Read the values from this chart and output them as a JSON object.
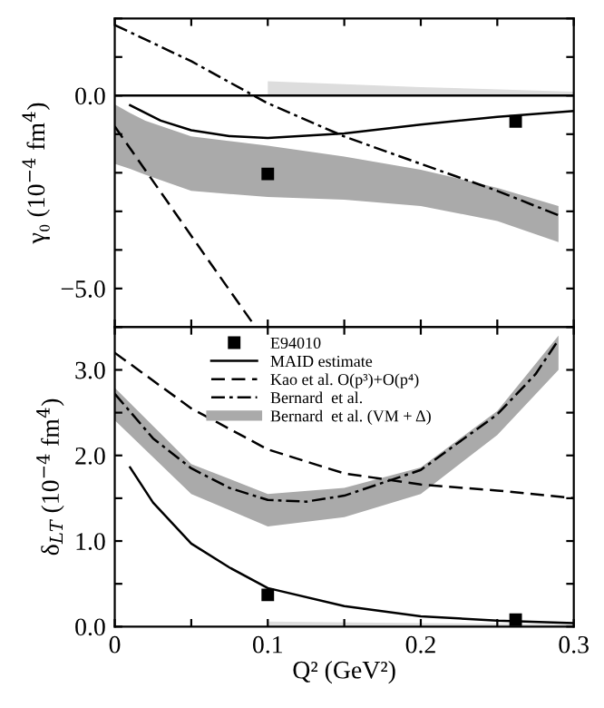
{
  "chart_data": [
    {
      "type": "line",
      "ylabel": "γ₀ (10$^{−4}$ fm$^{4}$)",
      "xlim": [
        0,
        0.3
      ],
      "ylim": [
        -6.0,
        2.0
      ],
      "xticks": [
        {
          "value": 0,
          "label": null
        },
        {
          "value": 0.05,
          "label": null
        },
        {
          "value": 0.1,
          "label": null
        },
        {
          "value": 0.15,
          "label": null
        },
        {
          "value": 0.2,
          "label": null
        },
        {
          "value": 0.25,
          "label": null
        },
        {
          "value": 0.3,
          "label": null
        }
      ],
      "yticks": [
        {
          "value": -6,
          "label": null
        },
        {
          "value": -5,
          "label": "−5.0"
        },
        {
          "value": -4,
          "label": null
        },
        {
          "value": -3,
          "label": null
        },
        {
          "value": -2,
          "label": null
        },
        {
          "value": -1,
          "label": null
        },
        {
          "value": 0,
          "label": "0.0"
        },
        {
          "value": 1,
          "label": null
        },
        {
          "value": 2,
          "label": null
        }
      ],
      "tick_labels": "y",
      "grid": false,
      "legend": false,
      "ref_lines": [
        {
          "axis": "y",
          "value": 0,
          "color": "#000000",
          "line_style": "solid"
        }
      ],
      "series": [
        {
          "color": "#aaaaaa",
          "x": [
            0,
            0.01,
            0.02,
            0.05,
            0.1,
            0.15,
            0.2,
            0.25,
            0.29
          ],
          "values": [
            null,
            null,
            null,
            null,
            null,
            null,
            null,
            null,
            null
          ],
          "lower": [
            -1.77,
            -1.9,
            -2.05,
            -2.47,
            -2.63,
            -2.7,
            -2.86,
            -3.25,
            -3.8
          ],
          "upper": [
            -0.23,
            -0.45,
            -0.65,
            -1.06,
            -1.3,
            -1.58,
            -1.92,
            -2.39,
            -2.86
          ]
        },
        {
          "type": "area",
          "color": "#dddddd",
          "x": [
            0.1,
            0.2,
            0.3
          ],
          "values": [
            0.37,
            0.22,
            0.1
          ]
        },
        {
          "color": "#000000",
          "line_style": "solid",
          "x": [
            0.01,
            0.03,
            0.05,
            0.075,
            0.1,
            0.15,
            0.2,
            0.25,
            0.3
          ],
          "values": [
            -0.25,
            -0.65,
            -0.9,
            -1.05,
            -1.1,
            -0.98,
            -0.75,
            -0.55,
            -0.4
          ]
        },
        {
          "color": "#000000",
          "line_style": "dashed",
          "x": [
            0,
            0.03,
            0.06,
            0.092
          ],
          "values": [
            -0.8,
            -2.5,
            -4.2,
            -6.0
          ]
        },
        {
          "color": "#000000",
          "line_style": "dashdot",
          "x": [
            0,
            0.05,
            0.1,
            0.15,
            0.2,
            0.25,
            0.29
          ],
          "values": [
            1.83,
            0.89,
            -0.2,
            -1.06,
            -1.77,
            -2.47,
            -3.1
          ]
        },
        {
          "type": "scatter",
          "color": "#000000",
          "marker": "square",
          "x": [
            0.1,
            0.262
          ],
          "values": [
            -2.03,
            -0.67
          ]
        }
      ]
    },
    {
      "type": "line",
      "xlabel": "Q² (GeV²)",
      "ylabel": "δ$_{LT}$ (10$^{−4}$ fm$^{4}$)",
      "xlim": [
        0,
        0.3
      ],
      "ylim": [
        0,
        3.5
      ],
      "xticks": [
        {
          "value": 0,
          "label": "0"
        },
        {
          "value": 0.05,
          "label": null
        },
        {
          "value": 0.1,
          "label": "0.1"
        },
        {
          "value": 0.15,
          "label": null
        },
        {
          "value": 0.2,
          "label": "0.2"
        },
        {
          "value": 0.25,
          "label": null
        },
        {
          "value": 0.3,
          "label": "0.3"
        }
      ],
      "yticks": [
        {
          "value": 0,
          "label": "0.0"
        },
        {
          "value": 0.5,
          "label": null
        },
        {
          "value": 1,
          "label": "1.0"
        },
        {
          "value": 1.5,
          "label": null
        },
        {
          "value": 2,
          "label": "2.0"
        },
        {
          "value": 2.5,
          "label": null
        },
        {
          "value": 3,
          "label": "3.0"
        },
        {
          "value": 3.5,
          "label": null
        }
      ],
      "grid": false,
      "legend": "top",
      "series": [
        {
          "type": "scatter",
          "name": "E94010",
          "color": "#000000",
          "marker": "square",
          "x": [
            0.1,
            0.262
          ],
          "values": [
            0.37,
            0.08
          ],
          "errors": [
            0.07,
            null
          ]
        },
        {
          "name": "MAID estimate",
          "color": "#000000",
          "line_style": "solid",
          "x": [
            0.01,
            0.025,
            0.05,
            0.075,
            0.1,
            0.15,
            0.2,
            0.25,
            0.3
          ],
          "values": [
            1.86,
            1.45,
            0.97,
            0.69,
            0.45,
            0.24,
            0.12,
            0.07,
            0.04
          ]
        },
        {
          "name": "Kao et al. O(p³)+O(p⁴)",
          "color": "#000000",
          "line_style": "dashed",
          "x": [
            0,
            0.05,
            0.1,
            0.15,
            0.2,
            0.25,
            0.3
          ],
          "values": [
            3.2,
            2.55,
            2.07,
            1.79,
            1.66,
            1.59,
            1.5
          ]
        },
        {
          "name": "Bernard  et al.",
          "color": "#000000",
          "line_style": "dashdot",
          "x": [
            0,
            0.025,
            0.05,
            0.075,
            0.1,
            0.125,
            0.15,
            0.2,
            0.25,
            0.275,
            0.29
          ],
          "values": [
            2.72,
            2.2,
            1.85,
            1.62,
            1.48,
            1.46,
            1.53,
            1.83,
            2.48,
            2.95,
            3.35
          ]
        },
        {
          "name": "Bernard  et al. (VM + Δ)",
          "color": "#aaaaaa",
          "x": [
            0,
            0.05,
            0.1,
            0.15,
            0.2,
            0.25,
            0.29
          ],
          "values": [
            null,
            null,
            null,
            null,
            null,
            null,
            null
          ],
          "lower": [
            2.41,
            1.55,
            1.17,
            1.28,
            1.55,
            2.24,
            3.0
          ],
          "upper": [
            2.79,
            1.9,
            1.55,
            1.62,
            1.86,
            2.52,
            3.4
          ]
        },
        {
          "type": "area",
          "color": "#dddddd",
          "x": [
            0.1,
            0.2,
            0.3
          ],
          "values": [
            0.06,
            0.04,
            0.03
          ]
        }
      ]
    }
  ]
}
